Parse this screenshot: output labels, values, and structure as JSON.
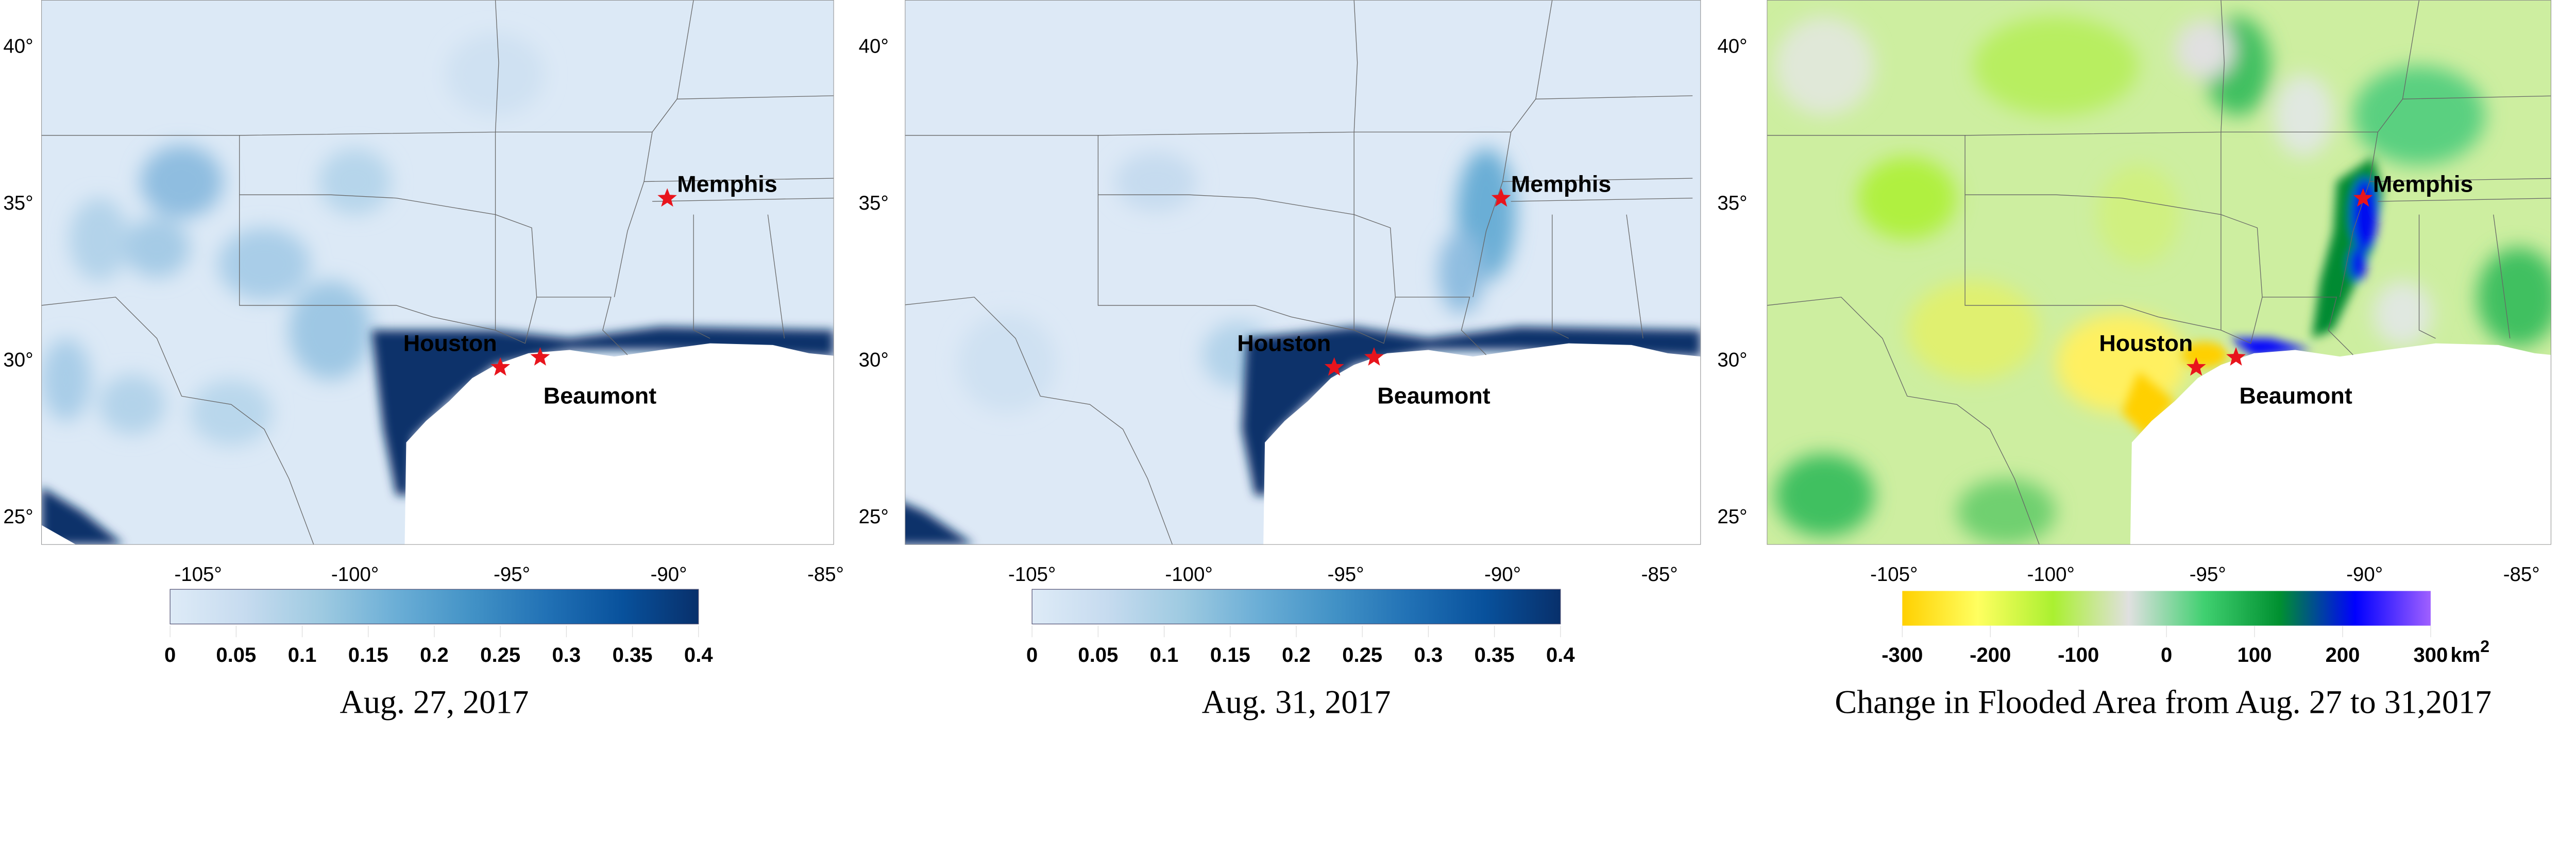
{
  "axes": {
    "lon_ticks": [
      -105,
      -100,
      -95,
      -90,
      -85
    ],
    "lat_ticks": [
      25,
      30,
      35,
      40
    ],
    "degree_symbol": "°"
  },
  "cities": [
    {
      "name": "Memphis",
      "lon": -90.05,
      "lat": 35.15
    },
    {
      "name": "Houston",
      "lon": -95.37,
      "lat": 29.76
    },
    {
      "name": "Beaumont",
      "lon": -94.1,
      "lat": 30.08
    }
  ],
  "marker_color": "#e8141c",
  "panels": [
    {
      "caption": "Aug. 27, 2017",
      "colorbar": {
        "ticks": [
          "0",
          "0.05",
          "0.1",
          "0.15",
          "0.2",
          "0.25",
          "0.3",
          "0.35",
          "0.4"
        ],
        "unit": "",
        "colors": [
          "#deebf7",
          "#c6dbef",
          "#9ecae1",
          "#6baed6",
          "#4292c6",
          "#2171b5",
          "#08519c",
          "#08306b"
        ]
      }
    },
    {
      "caption": "Aug. 31, 2017",
      "colorbar": {
        "ticks": [
          "0",
          "0.05",
          "0.1",
          "0.15",
          "0.2",
          "0.25",
          "0.3",
          "0.35",
          "0.4"
        ],
        "unit": "",
        "colors": [
          "#deebf7",
          "#c6dbef",
          "#9ecae1",
          "#6baed6",
          "#4292c6",
          "#2171b5",
          "#08519c",
          "#08306b"
        ]
      }
    },
    {
      "caption": "Change in Flooded Area from Aug. 27 to 31,2017",
      "colorbar": {
        "ticks": [
          "-300",
          "-200",
          "-100",
          "0",
          "100",
          "200",
          "300"
        ],
        "unit": "km",
        "unit_superscript": "2",
        "colors": [
          "#ffd000",
          "#ffff60",
          "#aaf030",
          "#e0e0e0",
          "#40d070",
          "#009030",
          "#0000ff",
          "#a060ff"
        ]
      }
    }
  ]
}
